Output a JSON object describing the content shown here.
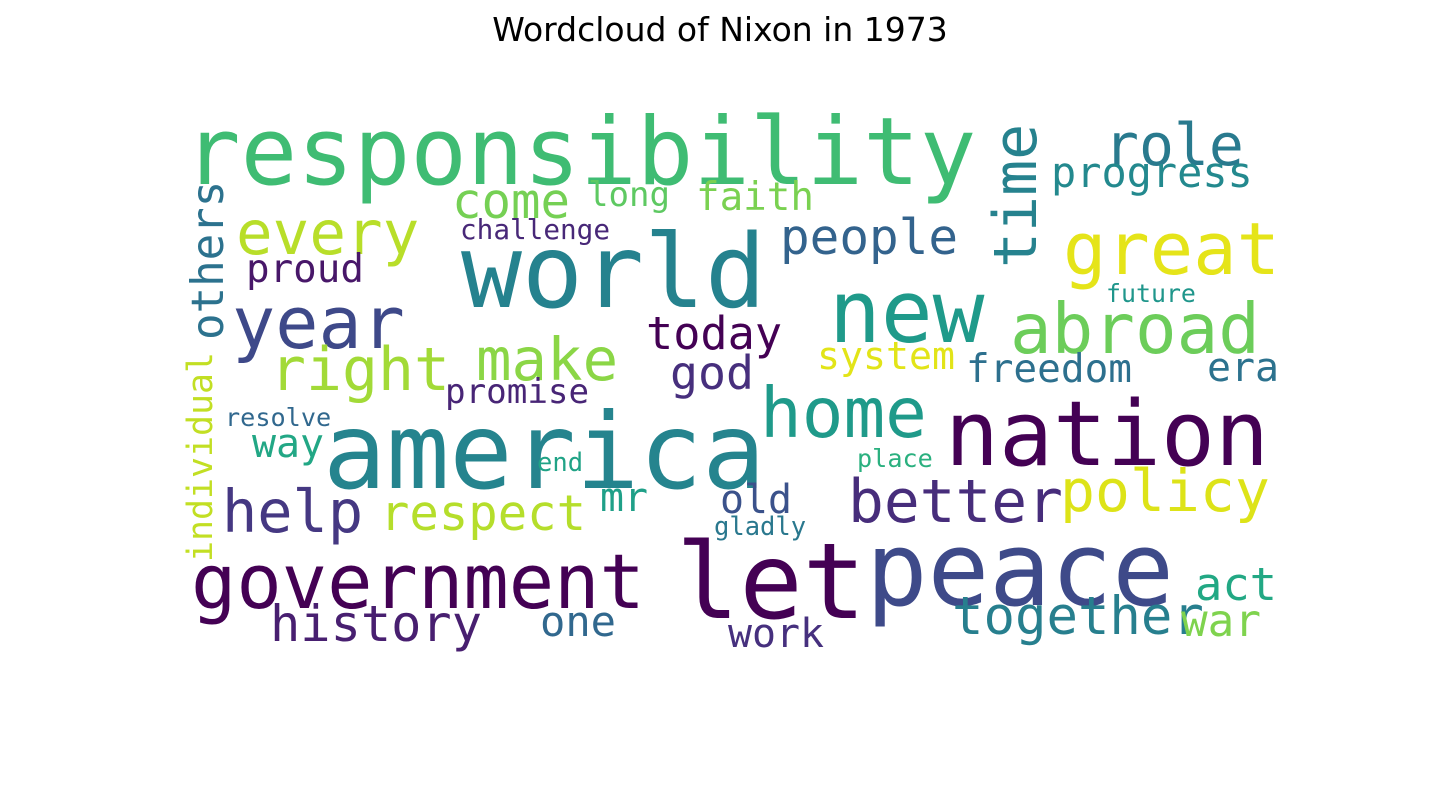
{
  "title": "Wordcloud of Nixon in 1973",
  "words": [
    {
      "text": "responsibility",
      "color": "#3fbc73"
    },
    {
      "text": "world",
      "color": "#25828e"
    },
    {
      "text": "america",
      "color": "#25848e"
    },
    {
      "text": "let",
      "color": "#440154"
    },
    {
      "text": "peace",
      "color": "#3e4a89"
    },
    {
      "text": "nation",
      "color": "#440154"
    },
    {
      "text": "new",
      "color": "#1f9a8a"
    },
    {
      "text": "government",
      "color": "#440154"
    },
    {
      "text": "great",
      "color": "#e5e419"
    },
    {
      "text": "home",
      "color": "#1f9a8a"
    },
    {
      "text": "abroad",
      "color": "#6ccd5a"
    },
    {
      "text": "year",
      "color": "#3e4989"
    },
    {
      "text": "time",
      "color": "#26828e"
    },
    {
      "text": "policy",
      "color": "#dde318"
    },
    {
      "text": "better",
      "color": "#472d7b"
    },
    {
      "text": "right",
      "color": "#a2da37"
    },
    {
      "text": "every",
      "color": "#b8de29"
    },
    {
      "text": "help",
      "color": "#453882"
    },
    {
      "text": "role",
      "color": "#297a8e"
    },
    {
      "text": "make",
      "color": "#8bd646"
    },
    {
      "text": "together",
      "color": "#277f8e"
    },
    {
      "text": "people",
      "color": "#33638d"
    },
    {
      "text": "history",
      "color": "#481f70"
    },
    {
      "text": "respect",
      "color": "#b5de2b"
    },
    {
      "text": "come",
      "color": "#75d054"
    },
    {
      "text": "today",
      "color": "#440154"
    },
    {
      "text": "individual",
      "color": "#c2df23"
    },
    {
      "text": "others",
      "color": "#2c728e"
    },
    {
      "text": "progress",
      "color": "#23898e"
    },
    {
      "text": "faith",
      "color": "#7ad151"
    },
    {
      "text": "god",
      "color": "#472f7d"
    },
    {
      "text": "freedom",
      "color": "#2d708e"
    },
    {
      "text": "act",
      "color": "#22a884"
    },
    {
      "text": "war",
      "color": "#7fd34e"
    },
    {
      "text": "system",
      "color": "#e2e418"
    },
    {
      "text": "work",
      "color": "#46307e"
    },
    {
      "text": "proud",
      "color": "#481769"
    },
    {
      "text": "one",
      "color": "#31688e"
    },
    {
      "text": "long",
      "color": "#5ec962"
    },
    {
      "text": "old",
      "color": "#3b528b"
    },
    {
      "text": "promise",
      "color": "#482576"
    },
    {
      "text": "way",
      "color": "#22a785"
    },
    {
      "text": "era",
      "color": "#2c728e"
    },
    {
      "text": "mr",
      "color": "#1fa088"
    },
    {
      "text": "challenge",
      "color": "#482878"
    },
    {
      "text": "resolve",
      "color": "#31688e"
    },
    {
      "text": "future",
      "color": "#1f968b"
    },
    {
      "text": "gladly",
      "color": "#2a788e"
    },
    {
      "text": "end",
      "color": "#20a386"
    },
    {
      "text": "place",
      "color": "#2ab07f"
    }
  ]
}
